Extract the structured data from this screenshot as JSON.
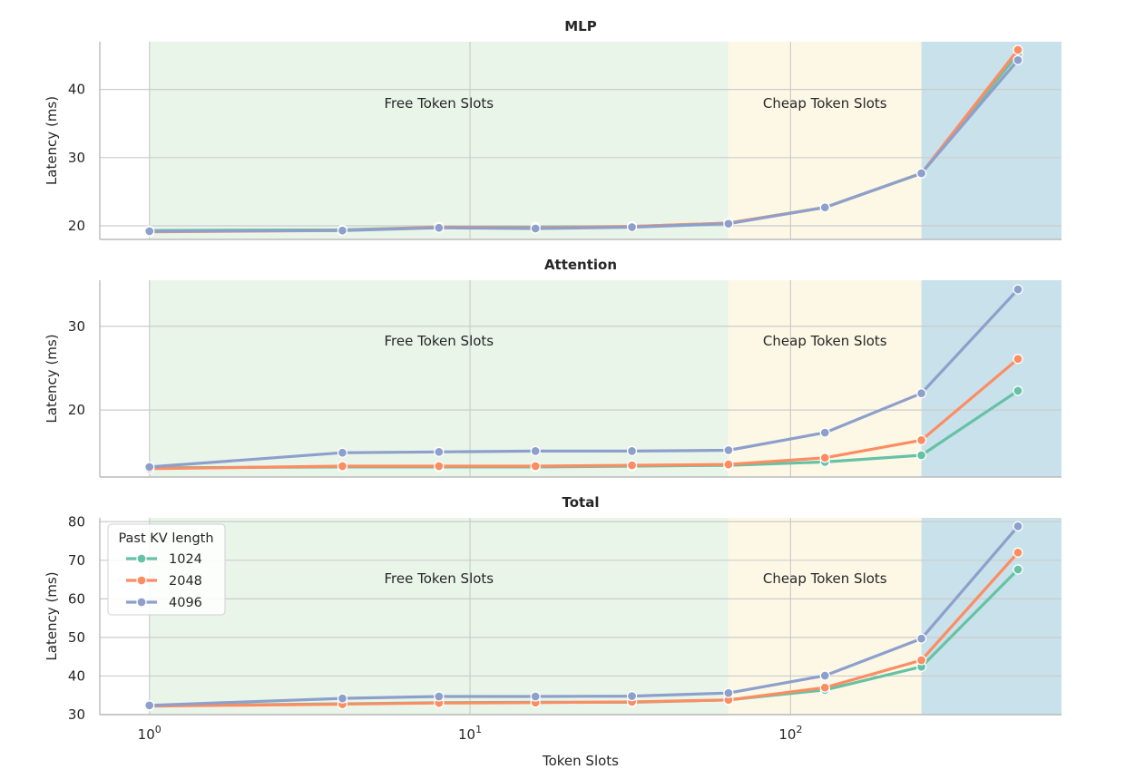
{
  "chart_data": {
    "type": "line",
    "xlabel": "Token Slots",
    "x_scale": "log",
    "xlim": [
      0.7,
      700
    ],
    "x_ticks": [
      1,
      10,
      100
    ],
    "x_tick_labels": [
      {
        "base": "10",
        "exp": "0"
      },
      {
        "base": "10",
        "exp": "1"
      },
      {
        "base": "10",
        "exp": "2"
      }
    ],
    "x": [
      1,
      4,
      8,
      16,
      32,
      64,
      128,
      256,
      512
    ],
    "grid": true,
    "regions": [
      {
        "label": "Free Token Slots",
        "x_start": 1,
        "x_end": 64,
        "color": "#eaf5ea"
      },
      {
        "label": "Cheap Token Slots",
        "x_start": 64,
        "x_end": 256,
        "color": "#fdf8e6"
      },
      {
        "label": "",
        "x_start": 256,
        "x_end": 700,
        "color": "#c9e1ea"
      }
    ],
    "legend": {
      "title": "Past KV length",
      "placement": "upper-left",
      "panel": 2
    },
    "series_colors": [
      "#66c2a5",
      "#fc8d62",
      "#8da0cb"
    ],
    "panels": [
      {
        "title": "MLP",
        "ylabel": "Latency (ms)",
        "ylim": [
          18,
          47
        ],
        "y_ticks": [
          20,
          30,
          40
        ],
        "series": [
          {
            "name": "1024",
            "values": [
              19.3,
              19.4,
              19.8,
              19.8,
              19.9,
              20.4,
              22.7,
              27.7,
              45.2
            ]
          },
          {
            "name": "2048",
            "values": [
              19.1,
              19.3,
              19.8,
              19.7,
              19.9,
              20.4,
              22.7,
              27.7,
              45.8
            ]
          },
          {
            "name": "4096",
            "values": [
              19.2,
              19.3,
              19.7,
              19.6,
              19.8,
              20.3,
              22.7,
              27.7,
              44.3
            ]
          }
        ]
      },
      {
        "title": "Attention",
        "ylabel": "Latency (ms)",
        "ylim": [
          12,
          35.5
        ],
        "y_ticks": [
          20,
          30
        ],
        "series": [
          {
            "name": "1024",
            "values": [
              13.1,
              13.2,
              13.2,
              13.2,
              13.3,
              13.4,
              13.8,
              14.6,
              22.3
            ]
          },
          {
            "name": "2048",
            "values": [
              13.0,
              13.3,
              13.3,
              13.3,
              13.4,
              13.5,
              14.3,
              16.4,
              26.1
            ]
          },
          {
            "name": "4096",
            "values": [
              13.2,
              14.9,
              15.0,
              15.1,
              15.1,
              15.2,
              17.3,
              22.0,
              34.4
            ]
          }
        ]
      },
      {
        "title": "Total",
        "ylabel": "Latency (ms)",
        "ylim": [
          30,
          81
        ],
        "y_ticks": [
          30,
          40,
          50,
          60,
          70,
          80
        ],
        "series": [
          {
            "name": "1024",
            "values": [
              32.3,
              32.8,
              33.1,
              33.2,
              33.2,
              33.8,
              36.4,
              42.4,
              67.6
            ]
          },
          {
            "name": "2048",
            "values": [
              32.2,
              32.7,
              33.0,
              33.1,
              33.3,
              33.8,
              37.0,
              44.1,
              72.0
            ]
          },
          {
            "name": "4096",
            "values": [
              32.4,
              34.2,
              34.7,
              34.7,
              34.8,
              35.6,
              40.1,
              49.7,
              78.8
            ]
          }
        ]
      }
    ]
  }
}
